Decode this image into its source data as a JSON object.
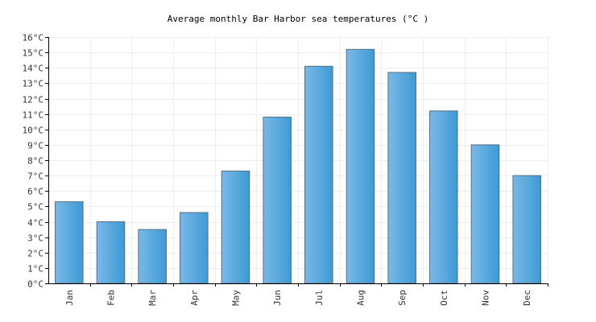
{
  "chart_data": {
    "type": "bar",
    "title": "Average monthly Bar Harbor sea temperatures (°C )",
    "xlabel": "",
    "ylabel": "",
    "categories": [
      "Jan",
      "Feb",
      "Mar",
      "Apr",
      "May",
      "Jun",
      "Jul",
      "Aug",
      "Sep",
      "Oct",
      "Nov",
      "Dec"
    ],
    "values": [
      5.3,
      4.0,
      3.5,
      4.6,
      7.3,
      10.8,
      14.1,
      15.2,
      13.7,
      11.2,
      9.0,
      7.0
    ],
    "ylim": [
      0,
      16
    ],
    "yticks": [
      0,
      1,
      2,
      3,
      4,
      5,
      6,
      7,
      8,
      9,
      10,
      11,
      12,
      13,
      14,
      15,
      16
    ],
    "ytick_labels": [
      "0°C",
      "1°C",
      "2°C",
      "3°C",
      "4°C",
      "5°C",
      "6°C",
      "7°C",
      "8°C",
      "9°C",
      "10°C",
      "11°C",
      "12°C",
      "13°C",
      "14°C",
      "15°C",
      "16°C"
    ],
    "grid": true,
    "legend": "none",
    "colors": {
      "bar_light": "#7ab8e8",
      "bar_dark": "#3d9ad4",
      "bar_border": "#5a6e82",
      "grid": "#eeeeee",
      "axis": "#000000"
    }
  }
}
